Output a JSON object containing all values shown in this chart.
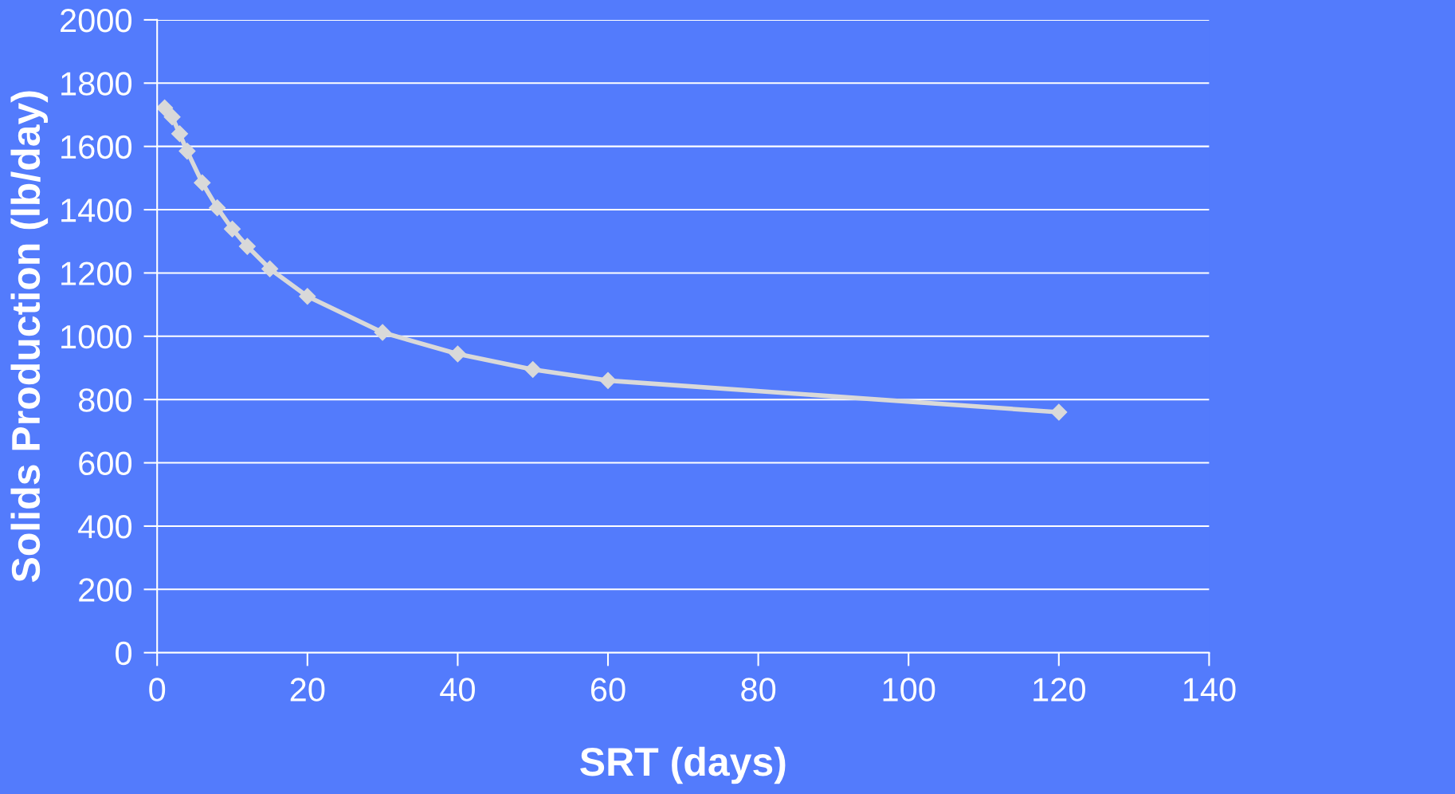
{
  "chart_data": {
    "type": "line",
    "xlabel": "SRT (days)",
    "ylabel": "Solids Production (lb/day)",
    "x": [
      1,
      2,
      3,
      4,
      6,
      8,
      10,
      12,
      15,
      20,
      30,
      40,
      50,
      60,
      120
    ],
    "series": [
      {
        "color": "#d9d9d9",
        "values": [
          1722,
          1693,
          1640,
          1585,
          1485,
          1406,
          1339,
          1284,
          1213,
          1126,
          1012,
          944,
          895,
          860,
          760
        ]
      }
    ],
    "xlim": [
      0,
      140
    ],
    "xticks": [
      0,
      20,
      40,
      60,
      80,
      100,
      120,
      140
    ],
    "ylim": [
      0,
      2000
    ],
    "yticks": [
      0,
      200,
      400,
      600,
      800,
      1000,
      1200,
      1400,
      1600,
      1800,
      2000
    ],
    "grid": "y",
    "marker": "diamond",
    "line_style": "solid",
    "legend": false
  }
}
